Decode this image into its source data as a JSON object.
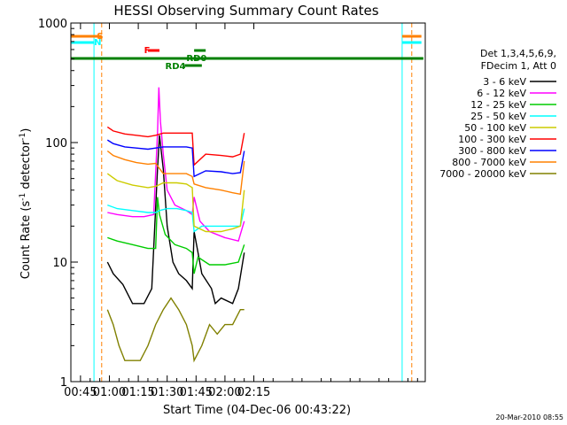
{
  "chart_data": {
    "type": "line",
    "title": "HESSI Observing Summary Count Rates",
    "xlabel": "Start Time (04-Dec-06 00:43:22)",
    "ylabel_main": "Count Rate (s",
    "ylabel_sup1": "-1",
    "ylabel_mid": " detector",
    "ylabel_sup2": "-1",
    "ylabel_end": ")",
    "yscale": "log",
    "ylim": [
      1,
      1000
    ],
    "xlim_minutes": [
      40,
      224
    ],
    "x_ticks": [
      {
        "m": 45,
        "label": "00:45"
      },
      {
        "m": 60,
        "label": "01:00"
      },
      {
        "m": 75,
        "label": "01:15"
      },
      {
        "m": 90,
        "label": "01:30"
      },
      {
        "m": 105,
        "label": "01:45"
      },
      {
        "m": 120,
        "label": "02:00"
      },
      {
        "m": 135,
        "label": "02:15"
      }
    ],
    "y_ticks": [
      {
        "v": 1,
        "label": "1"
      },
      {
        "v": 10,
        "label": "10"
      },
      {
        "v": 100,
        "label": "100"
      },
      {
        "v": 1000,
        "label": "1000"
      }
    ],
    "legend_header": [
      "Det 1,3,4,5,6,9,",
      "FDecim 1, Att 0"
    ],
    "series": [
      {
        "name": "3 - 6 keV",
        "color": "#000000",
        "points": [
          [
            59,
            10
          ],
          [
            62,
            8
          ],
          [
            67,
            6.5
          ],
          [
            72,
            4.5
          ],
          [
            78,
            4.5
          ],
          [
            82,
            6
          ],
          [
            85,
            60
          ],
          [
            86,
            115
          ],
          [
            88,
            60
          ],
          [
            90,
            20
          ],
          [
            93,
            10
          ],
          [
            96,
            8
          ],
          [
            100,
            7
          ],
          [
            103,
            6
          ],
          [
            104,
            18
          ],
          [
            106,
            12
          ],
          [
            108,
            8
          ],
          [
            113,
            6
          ],
          [
            115,
            4.5
          ],
          [
            118,
            5
          ],
          [
            124,
            4.5
          ],
          [
            127,
            6
          ],
          [
            130,
            12
          ]
        ]
      },
      {
        "name": "6 - 12 keV",
        "color": "#ff00ff",
        "points": [
          [
            59,
            26
          ],
          [
            64,
            25
          ],
          [
            72,
            24
          ],
          [
            78,
            24
          ],
          [
            83,
            25
          ],
          [
            85,
            120
          ],
          [
            85.7,
            290
          ],
          [
            86.5,
            150
          ],
          [
            88,
            80
          ],
          [
            90,
            40
          ],
          [
            94,
            30
          ],
          [
            100,
            27
          ],
          [
            103,
            25
          ],
          [
            104,
            35
          ],
          [
            107,
            22
          ],
          [
            112,
            18
          ],
          [
            120,
            16
          ],
          [
            127,
            15
          ],
          [
            130,
            22
          ]
        ]
      },
      {
        "name": "12 - 25 keV",
        "color": "#00cc00",
        "points": [
          [
            59,
            16
          ],
          [
            64,
            15
          ],
          [
            72,
            14
          ],
          [
            80,
            13
          ],
          [
            84,
            13
          ],
          [
            85,
            35
          ],
          [
            86,
            25
          ],
          [
            89,
            17
          ],
          [
            94,
            14
          ],
          [
            100,
            13
          ],
          [
            103,
            12
          ],
          [
            104,
            8
          ],
          [
            106,
            11
          ],
          [
            112,
            9.5
          ],
          [
            120,
            9.5
          ],
          [
            127,
            10
          ],
          [
            130,
            14
          ]
        ]
      },
      {
        "name": "25 - 50 keV",
        "color": "#00ffff",
        "points": [
          [
            59,
            30
          ],
          [
            64,
            28
          ],
          [
            72,
            27
          ],
          [
            80,
            26
          ],
          [
            84,
            26
          ],
          [
            86,
            27
          ],
          [
            90,
            28
          ],
          [
            95,
            28
          ],
          [
            100,
            27
          ],
          [
            103,
            26
          ],
          [
            104,
            18
          ],
          [
            108,
            20
          ],
          [
            115,
            20
          ],
          [
            122,
            20
          ],
          [
            128,
            20
          ],
          [
            130,
            28
          ]
        ]
      },
      {
        "name": "50 - 100 keV",
        "color": "#cccc00",
        "points": [
          [
            59,
            55
          ],
          [
            64,
            48
          ],
          [
            72,
            44
          ],
          [
            80,
            42
          ],
          [
            84,
            43
          ],
          [
            88,
            46
          ],
          [
            95,
            46
          ],
          [
            100,
            45
          ],
          [
            103,
            42
          ],
          [
            104,
            20
          ],
          [
            110,
            18
          ],
          [
            118,
            18
          ],
          [
            124,
            19
          ],
          [
            128,
            20
          ],
          [
            130,
            40
          ]
        ]
      },
      {
        "name": "100 - 300 keV",
        "color": "#ff0000",
        "points": [
          [
            59,
            135
          ],
          [
            62,
            125
          ],
          [
            68,
            118
          ],
          [
            74,
            115
          ],
          [
            80,
            112
          ],
          [
            84,
            115
          ],
          [
            88,
            120
          ],
          [
            94,
            120
          ],
          [
            100,
            120
          ],
          [
            103,
            120
          ],
          [
            104,
            65
          ],
          [
            110,
            80
          ],
          [
            118,
            78
          ],
          [
            124,
            76
          ],
          [
            128,
            80
          ],
          [
            130,
            120
          ]
        ]
      },
      {
        "name": "300 - 800 keV",
        "color": "#0000ff",
        "points": [
          [
            59,
            105
          ],
          [
            62,
            98
          ],
          [
            68,
            92
          ],
          [
            74,
            90
          ],
          [
            80,
            88
          ],
          [
            84,
            90
          ],
          [
            88,
            92
          ],
          [
            94,
            92
          ],
          [
            100,
            92
          ],
          [
            103,
            90
          ],
          [
            104,
            52
          ],
          [
            110,
            58
          ],
          [
            118,
            57
          ],
          [
            124,
            55
          ],
          [
            128,
            56
          ],
          [
            130,
            85
          ]
        ]
      },
      {
        "name": "800 - 7000 keV",
        "color": "#ff8000",
        "points": [
          [
            59,
            85
          ],
          [
            62,
            78
          ],
          [
            68,
            72
          ],
          [
            74,
            68
          ],
          [
            80,
            66
          ],
          [
            84,
            67
          ],
          [
            88,
            55
          ],
          [
            94,
            55
          ],
          [
            100,
            55
          ],
          [
            103,
            52
          ],
          [
            104,
            45
          ],
          [
            110,
            42
          ],
          [
            118,
            40
          ],
          [
            124,
            38
          ],
          [
            128,
            37
          ],
          [
            130,
            70
          ]
        ]
      },
      {
        "name": "7000 - 20000 keV",
        "color": "#808000",
        "points": [
          [
            59,
            4
          ],
          [
            62,
            3
          ],
          [
            65,
            2
          ],
          [
            68,
            1.5
          ],
          [
            72,
            1.5
          ],
          [
            76,
            1.5
          ],
          [
            80,
            2
          ],
          [
            84,
            3
          ],
          [
            88,
            4
          ],
          [
            92,
            5
          ],
          [
            96,
            4
          ],
          [
            100,
            3
          ],
          [
            103,
            2
          ],
          [
            104,
            1.5
          ],
          [
            108,
            2
          ],
          [
            112,
            3
          ],
          [
            116,
            2.5
          ],
          [
            120,
            3
          ],
          [
            124,
            3
          ],
          [
            128,
            4
          ],
          [
            130,
            4
          ]
        ]
      }
    ],
    "flags": [
      {
        "label": "S",
        "color": "#ff8000",
        "label_at_m": 53.5
      },
      {
        "label": "N",
        "color": "#00ffff",
        "label_at_m": 52
      },
      {
        "label": "F",
        "color": "#ff0000",
        "label_at_m": 78
      },
      {
        "label": "RD0",
        "color": "#008000",
        "label_at_m": 100
      },
      {
        "label": "RD4",
        "color": "#008000",
        "label_at_m": 89
      }
    ],
    "vertical_markers": [
      {
        "m": 52,
        "color": "#00ffff"
      },
      {
        "m": 56,
        "color": "#ff8000"
      },
      {
        "m": 212,
        "color": "#00ffff"
      },
      {
        "m": 217,
        "color": "#ff8000"
      }
    ]
  },
  "footer": "20-Mar-2010 08:55"
}
